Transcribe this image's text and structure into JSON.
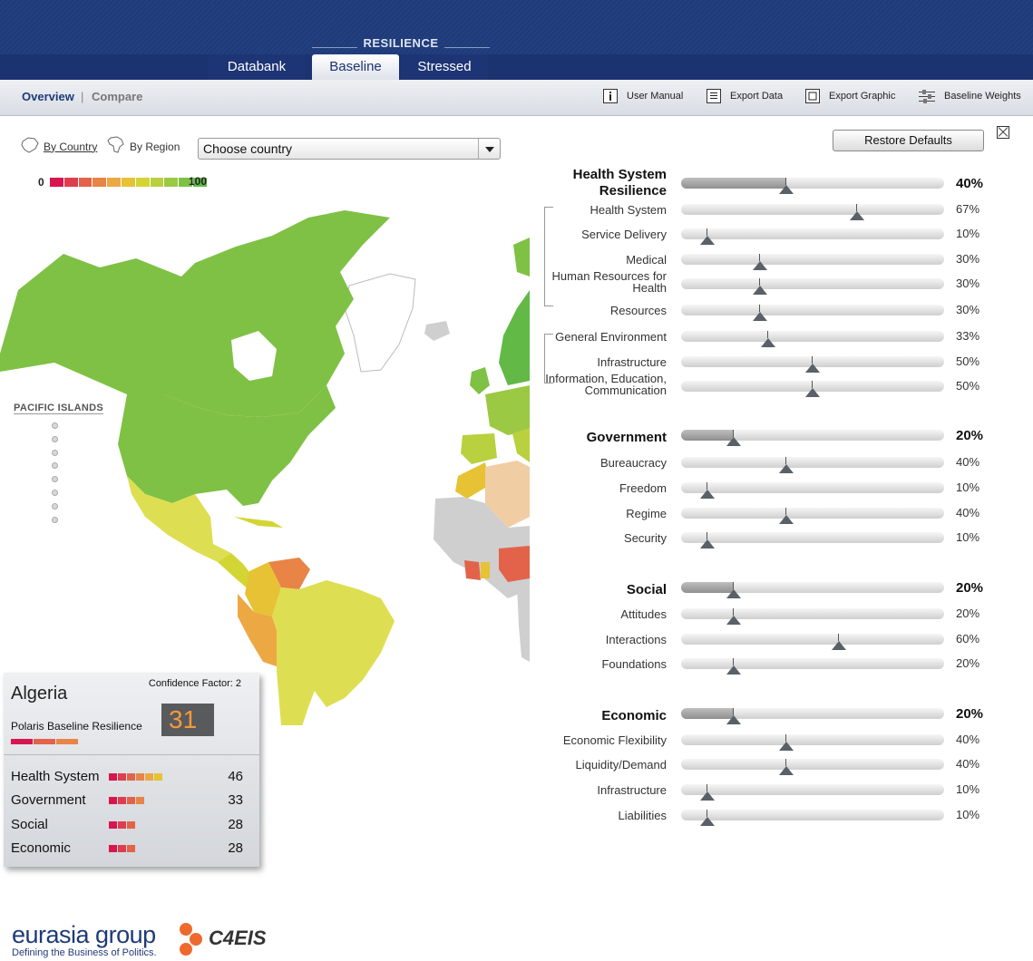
{
  "header": {
    "section_label": "RESILIENCE",
    "tabs": [
      "Databank",
      "Baseline",
      "Stressed"
    ],
    "active_tab": "Baseline"
  },
  "subnav": {
    "overview": "Overview",
    "separator": "|",
    "compare": "Compare",
    "tools": {
      "user_manual": "User Manual",
      "export_data": "Export Data",
      "export_graphic": "Export Graphic",
      "baseline_weights": "Baseline Weights"
    }
  },
  "map_controls": {
    "by_country": "By Country",
    "by_region": "By Region",
    "country_select": "Choose country",
    "scale_min": "0",
    "scale_max": "100",
    "scale_colors": [
      "#d8164e",
      "#de3d4e",
      "#e2634a",
      "#e88446",
      "#eca843",
      "#e6c234",
      "#d3d534",
      "#b9d03f",
      "#9bc943",
      "#7fc144",
      "#62b946"
    ],
    "pacific_islands": "PACIFIC ISLANDS"
  },
  "country_card": {
    "confidence": "Confidence Factor: 2",
    "country": "Algeria",
    "baseline_label": "Polaris Baseline Resilience",
    "baseline_score": "31",
    "categories": [
      {
        "label": "Health System",
        "value": "46",
        "bar_segments": 6
      },
      {
        "label": "Government",
        "value": "33",
        "bar_segments": 4
      },
      {
        "label": "Social",
        "value": "28",
        "bar_segments": 3
      },
      {
        "label": "Economic",
        "value": "28",
        "bar_segments": 3
      }
    ]
  },
  "weights_panel": {
    "restore_defaults": "Restore Defaults",
    "rows": [
      {
        "label": "Health System\nResilience",
        "percent": "40%",
        "value": 40,
        "head": true
      },
      {
        "label": "Health System",
        "percent": "67%",
        "value": 67
      },
      {
        "label": "Service Delivery",
        "percent": "10%",
        "value": 10
      },
      {
        "label": "Medical",
        "percent": "30%",
        "value": 30
      },
      {
        "label": "Human Resources for\nHealth",
        "percent": "30%",
        "value": 30
      },
      {
        "label": "Resources",
        "percent": "30%",
        "value": 30
      },
      {
        "label": "General Environment",
        "percent": "33%",
        "value": 33
      },
      {
        "label": "Infrastructure",
        "percent": "50%",
        "value": 50
      },
      {
        "label": "Information, Education,\nCommunication",
        "percent": "50%",
        "value": 50
      },
      {
        "label": "Government",
        "percent": "20%",
        "value": 20,
        "head": true
      },
      {
        "label": "Bureaucracy",
        "percent": "40%",
        "value": 40
      },
      {
        "label": "Freedom",
        "percent": "10%",
        "value": 10
      },
      {
        "label": "Regime",
        "percent": "40%",
        "value": 40
      },
      {
        "label": "Security",
        "percent": "10%",
        "value": 10
      },
      {
        "label": "Social",
        "percent": "20%",
        "value": 20,
        "head": true
      },
      {
        "label": "Attitudes",
        "percent": "20%",
        "value": 20
      },
      {
        "label": "Interactions",
        "percent": "60%",
        "value": 60
      },
      {
        "label": "Foundations",
        "percent": "20%",
        "value": 20
      },
      {
        "label": "Economic",
        "percent": "20%",
        "value": 20,
        "head": true
      },
      {
        "label": "Economic Flexibility",
        "percent": "40%",
        "value": 40
      },
      {
        "label": "Liquidity/Demand",
        "percent": "40%",
        "value": 40
      },
      {
        "label": "Infrastructure",
        "percent": "10%",
        "value": 10
      },
      {
        "label": "Liabilities",
        "percent": "10%",
        "value": 10
      }
    ]
  },
  "footer": {
    "eurasia_name": "eurasia group",
    "eurasia_tagline": "Defining the Business of Politics.",
    "c4eis": "C4EIS"
  }
}
